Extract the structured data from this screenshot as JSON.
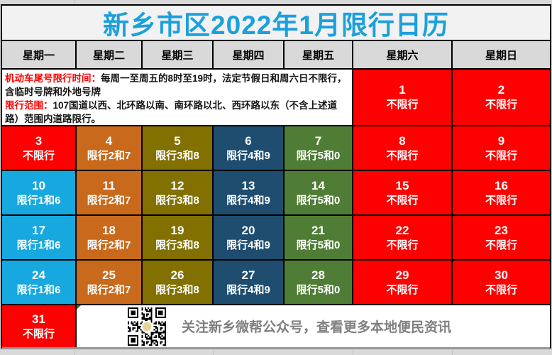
{
  "title": "新乡市区2022年1月限行日历",
  "weekday_header": [
    "星期一",
    "星期二",
    "星期三",
    "星期四",
    "星期五",
    "星期六",
    "星期日"
  ],
  "notice": {
    "time_label": "机动车尾号限行时间：",
    "time_text": "每周一至周五的8时至19时，法定节假日和周六日不限行，含临时号牌和外地号牌",
    "scope_label": "限行范围：",
    "scope_text": "107国道以西、北环路以南、南环路以北、西环路以东（不含上述道路）范围内道路限行。"
  },
  "calendar": {
    "days": [
      {
        "date": "1",
        "label": "不限行",
        "type": "none"
      },
      {
        "date": "2",
        "label": "不限行",
        "type": "none"
      },
      {
        "date": "3",
        "label": "不限行",
        "type": "none"
      },
      {
        "date": "4",
        "label": "限行2和7",
        "type": "r27"
      },
      {
        "date": "5",
        "label": "限行3和8",
        "type": "r38"
      },
      {
        "date": "6",
        "label": "限行4和9",
        "type": "r49"
      },
      {
        "date": "7",
        "label": "限行5和0",
        "type": "r50"
      },
      {
        "date": "8",
        "label": "不限行",
        "type": "none"
      },
      {
        "date": "9",
        "label": "不限行",
        "type": "none"
      },
      {
        "date": "10",
        "label": "限行1和6",
        "type": "r16"
      },
      {
        "date": "11",
        "label": "限行2和7",
        "type": "r27"
      },
      {
        "date": "12",
        "label": "限行3和8",
        "type": "r38"
      },
      {
        "date": "13",
        "label": "限行4和9",
        "type": "r49"
      },
      {
        "date": "14",
        "label": "限行5和0",
        "type": "r50"
      },
      {
        "date": "15",
        "label": "不限行",
        "type": "none"
      },
      {
        "date": "16",
        "label": "不限行",
        "type": "none"
      },
      {
        "date": "17",
        "label": "限行1和6",
        "type": "r16"
      },
      {
        "date": "18",
        "label": "限行2和7",
        "type": "r27"
      },
      {
        "date": "19",
        "label": "限行3和8",
        "type": "r38"
      },
      {
        "date": "20",
        "label": "限行4和9",
        "type": "r49"
      },
      {
        "date": "21",
        "label": "限行5和0",
        "type": "r50"
      },
      {
        "date": "22",
        "label": "不限行",
        "type": "none"
      },
      {
        "date": "23",
        "label": "不限行",
        "type": "none"
      },
      {
        "date": "24",
        "label": "限行1和6",
        "type": "r16"
      },
      {
        "date": "25",
        "label": "限行2和7",
        "type": "r27"
      },
      {
        "date": "26",
        "label": "限行3和8",
        "type": "r38"
      },
      {
        "date": "27",
        "label": "限行4和9",
        "type": "r49"
      },
      {
        "date": "28",
        "label": "限行5和0",
        "type": "r50"
      },
      {
        "date": "29",
        "label": "不限行",
        "type": "none"
      },
      {
        "date": "30",
        "label": "不限行",
        "type": "none"
      },
      {
        "date": "31",
        "label": "不限行",
        "type": "none"
      }
    ]
  },
  "footer": {
    "text": "关注新乡微帮公众号，查看更多本地便民资讯",
    "qr_icon": "qr-code"
  },
  "colors": {
    "none": "#FD0000",
    "r16": "#17A8E0",
    "r27": "#C8691C",
    "r38": "#827000",
    "r49": "#1E4D70",
    "r50": "#4F7D35",
    "title_text": "#1BA0DC",
    "header_bg": "#D9D9D9",
    "notice_label": "#FF0000",
    "footer_text": "#7F7F7F"
  }
}
